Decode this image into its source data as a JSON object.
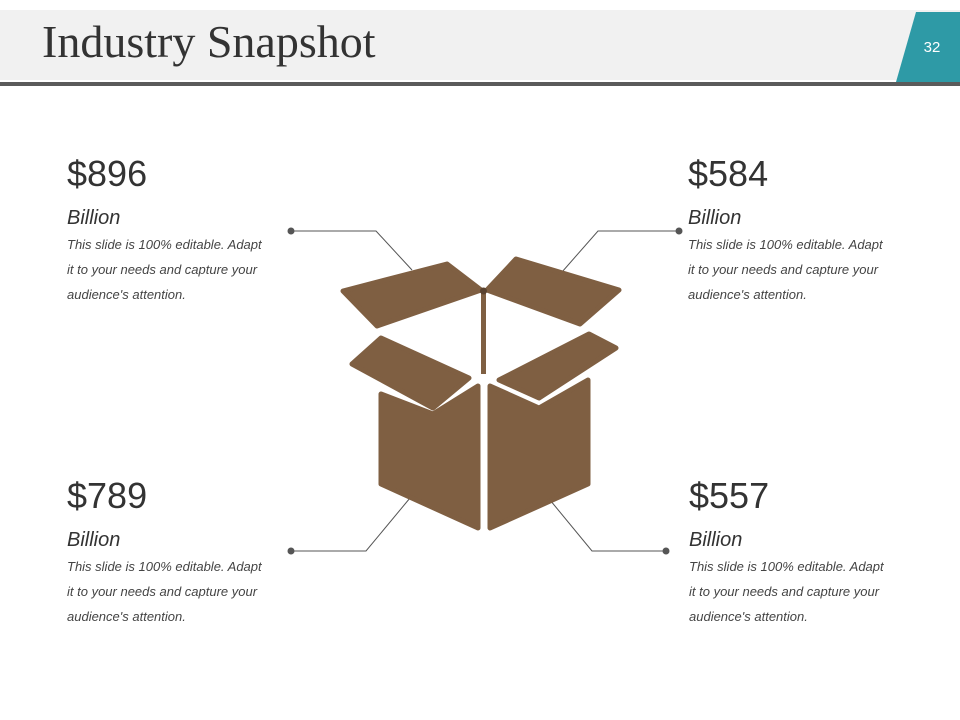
{
  "header": {
    "title": "Industry Snapshot",
    "page_number": "32",
    "accent_color": "#2e9aa6"
  },
  "illustration": {
    "name": "open-box-icon",
    "color": "#7f5f42"
  },
  "stats": [
    {
      "value": "$896",
      "unit": "Billion",
      "desc_lines": [
        "This slide is 100% editable. Adapt",
        "it to your needs and capture your",
        "audience's attention."
      ]
    },
    {
      "value": "$584",
      "unit": "Billion",
      "desc_lines": [
        "This slide is 100% editable. Adapt",
        "it to your needs and capture your",
        "audience's attention."
      ]
    },
    {
      "value": "$789",
      "unit": "Billion",
      "desc_lines": [
        "This slide is 100% editable. Adapt",
        "it to your needs and capture your",
        "audience's attention."
      ]
    },
    {
      "value": "$557",
      "unit": "Billion",
      "desc_lines": [
        "This slide is 100% editable. Adapt",
        "it to your needs and capture your",
        "audience's attention."
      ]
    }
  ]
}
